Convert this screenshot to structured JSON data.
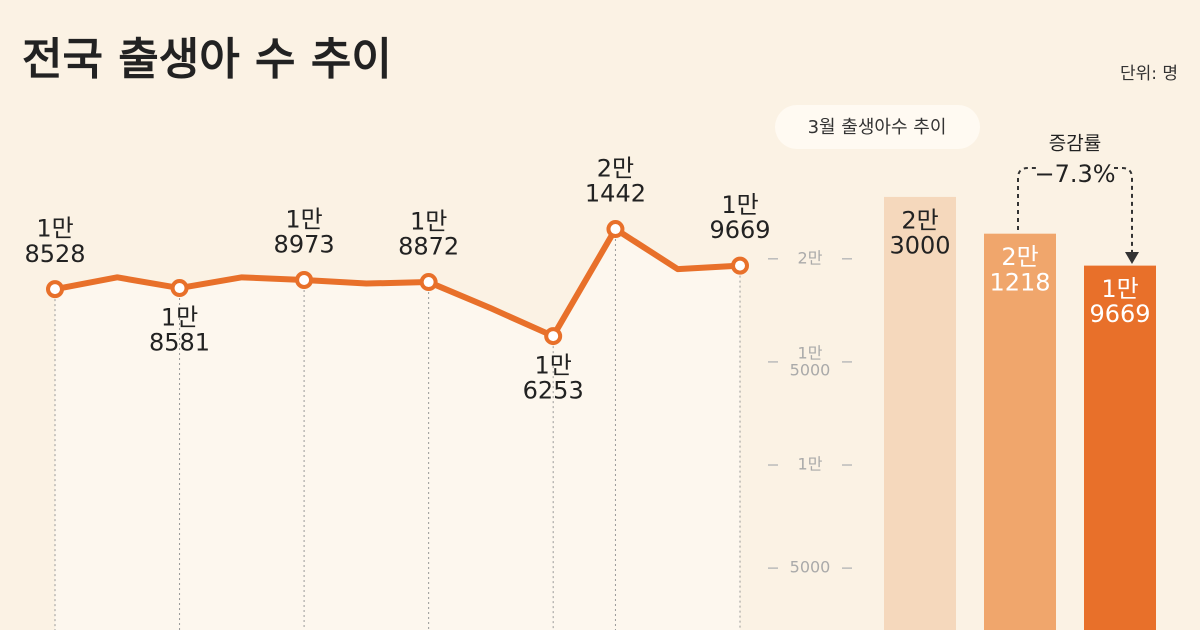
{
  "chart_data": [
    {
      "type": "line",
      "title": "전국 출생아 수 추이",
      "unit": "단위: 명",
      "categories": [
        null,
        null,
        null,
        null,
        null,
        null,
        null,
        null,
        null,
        null,
        null,
        null
      ],
      "values": [
        18528,
        19100,
        18581,
        19100,
        18973,
        18800,
        18872,
        17600,
        16253,
        21442,
        19500,
        19669
      ],
      "value_labels": [
        "1만\n8528",
        null,
        "1만\n8581",
        null,
        "1만\n8973",
        null,
        "1만\n8872",
        null,
        "1만\n6253",
        "2만\n1442",
        null,
        "1만\n9669"
      ],
      "color": "#e8702a",
      "ylim": [
        2000,
        27700
      ],
      "yticks": [
        {
          "value": 20000,
          "label": "2만"
        },
        {
          "value": 15000,
          "label": "1만\n5000"
        },
        {
          "value": 10000,
          "label": "1만"
        },
        5000
      ]
    },
    {
      "type": "bar",
      "title": "3월 출생아수 추이",
      "annotation": "증감률",
      "change_label": "−7.3%",
      "values": [
        23000,
        21218,
        19669
      ],
      "value_labels": [
        "2만\n3000",
        "2만\n1218",
        "1만\n9669"
      ],
      "colors": [
        "#f5d8bc",
        "#f0a66c",
        "#e8702a"
      ],
      "ylim": [
        2000,
        27700
      ]
    }
  ]
}
